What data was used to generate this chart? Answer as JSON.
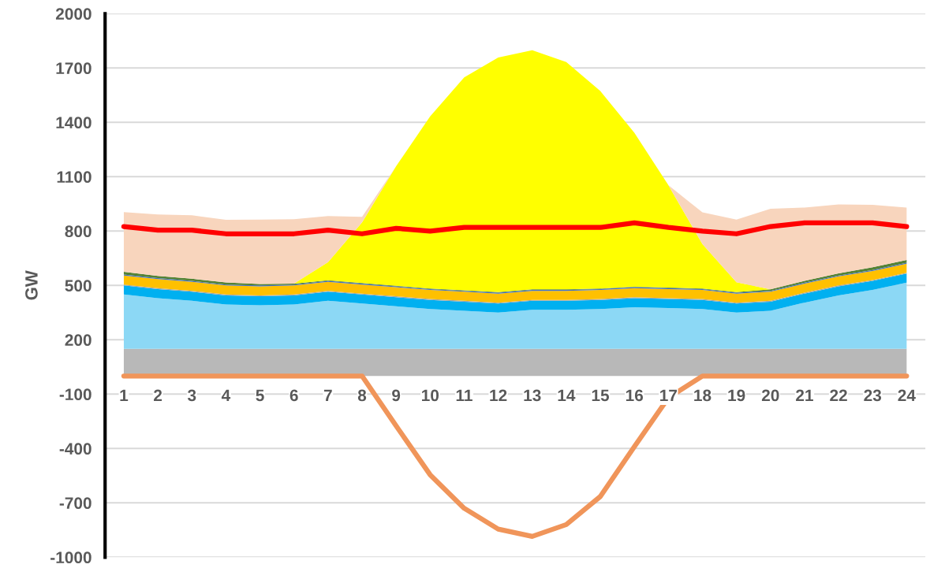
{
  "chart_data": {
    "type": "area",
    "stacked": true,
    "ylabel": "GW",
    "categories": [
      "1",
      "2",
      "3",
      "4",
      "5",
      "6",
      "7",
      "8",
      "9",
      "10",
      "11",
      "12",
      "13",
      "14",
      "15",
      "16",
      "17",
      "18",
      "19",
      "20",
      "21",
      "22",
      "23",
      "24"
    ],
    "ylim": [
      -1000,
      2000
    ],
    "yticks": [
      -1000,
      -700,
      -400,
      -100,
      200,
      500,
      800,
      1100,
      1400,
      1700,
      2000
    ],
    "grid": "y",
    "legend": false,
    "series": [
      {
        "color": "#b8b8b8",
        "values": [
          150,
          150,
          150,
          150,
          150,
          150,
          150,
          150,
          150,
          150,
          150,
          150,
          150,
          150,
          150,
          150,
          150,
          150,
          150,
          150,
          150,
          150,
          150,
          150
        ]
      },
      {
        "color": "#8cd8f5",
        "values": [
          300,
          280,
          265,
          245,
          240,
          245,
          265,
          250,
          235,
          220,
          210,
          200,
          215,
          215,
          220,
          230,
          225,
          220,
          200,
          210,
          255,
          295,
          325,
          365
        ]
      },
      {
        "color": "#00b0f0",
        "values": [
          50,
          50,
          50,
          50,
          50,
          50,
          50,
          50,
          50,
          50,
          50,
          50,
          50,
          50,
          50,
          50,
          50,
          50,
          50,
          50,
          50,
          50,
          50,
          50
        ]
      },
      {
        "color": "#a5a5a5",
        "values": [
          5,
          5,
          5,
          5,
          5,
          5,
          5,
          5,
          5,
          5,
          5,
          5,
          5,
          5,
          5,
          5,
          5,
          5,
          5,
          5,
          5,
          5,
          5,
          5
        ]
      },
      {
        "color": "#ffc000",
        "values": [
          50,
          50,
          50,
          50,
          50,
          50,
          50,
          50,
          50,
          50,
          50,
          50,
          50,
          50,
          50,
          50,
          50,
          50,
          50,
          50,
          50,
          50,
          50,
          50
        ]
      },
      {
        "color": "#4472c4",
        "values": [
          5,
          5,
          5,
          5,
          5,
          5,
          5,
          5,
          5,
          5,
          5,
          5,
          5,
          5,
          5,
          5,
          5,
          5,
          5,
          5,
          5,
          5,
          5,
          5
        ]
      },
      {
        "color": "#548235",
        "values": [
          15,
          12,
          12,
          12,
          8,
          5,
          3,
          3,
          3,
          3,
          3,
          3,
          3,
          3,
          3,
          3,
          3,
          3,
          3,
          8,
          10,
          12,
          15,
          15
        ]
      },
      {
        "color": "#ffff00",
        "values": [
          0,
          0,
          0,
          0,
          0,
          0,
          100,
          335,
          660,
          950,
          1175,
          1295,
          1320,
          1255,
          1090,
          850,
          565,
          245,
          55,
          0,
          0,
          0,
          0,
          0
        ]
      },
      {
        "color": "#f8d5bd",
        "values": [
          330,
          340,
          350,
          345,
          355,
          355,
          255,
          30,
          0,
          0,
          0,
          0,
          0,
          0,
          0,
          0,
          0,
          175,
          345,
          445,
          405,
          380,
          345,
          290
        ]
      },
      {
        "type": "line",
        "color": "#ff0000",
        "values": [
          825,
          805,
          805,
          785,
          785,
          785,
          805,
          785,
          815,
          800,
          820,
          820,
          820,
          820,
          820,
          845,
          820,
          800,
          785,
          825,
          845,
          845,
          845,
          825
        ]
      },
      {
        "type": "line",
        "color": "#f0955a",
        "values": [
          0,
          0,
          0,
          0,
          0,
          0,
          0,
          0,
          -275,
          -545,
          -730,
          -845,
          -885,
          -820,
          -665,
          -390,
          -120,
          0,
          0,
          0,
          0,
          0,
          0,
          0
        ]
      }
    ]
  }
}
